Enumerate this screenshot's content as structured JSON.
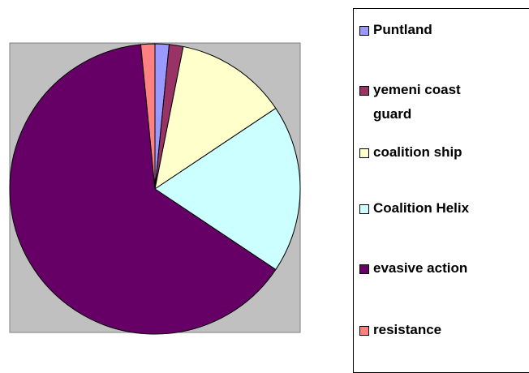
{
  "chart_data": {
    "type": "pie",
    "categories": [
      "Puntland",
      "yemeni coast guard",
      "coalition ship",
      "Coalition Helix",
      "evasive action",
      "resistance"
    ],
    "values": [
      1,
      1,
      8,
      12,
      41,
      1
    ],
    "colors": [
      "#9999ff",
      "#993366",
      "#ffffcc",
      "#ccffff",
      "#660066",
      "#ff8080"
    ]
  }
}
